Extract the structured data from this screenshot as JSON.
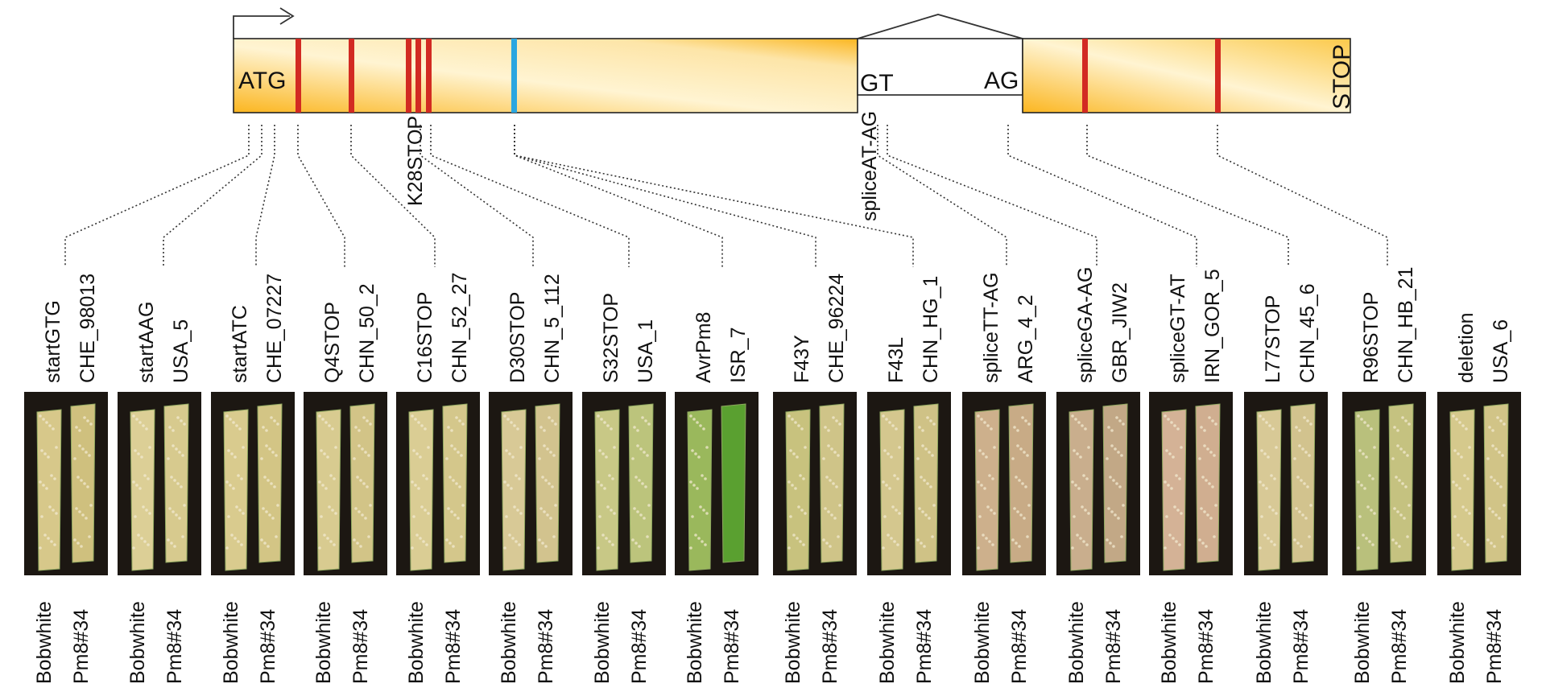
{
  "gene": {
    "start_codon": "ATG",
    "splice_donor": "GT",
    "splice_acceptor": "AG",
    "stop_codon": "STOP",
    "inline_labels": [
      "K28STOP",
      "spliceAT-AG"
    ],
    "colors": {
      "exon_light": "#fff4d2",
      "exon_dark": "#fbb620",
      "mutation": "#d22a22",
      "avr_marker": "#2aa6e0"
    }
  },
  "samples": [
    {
      "mutation": "startGTG",
      "isolate": "CHE_98013",
      "leaf_colors": [
        "#d7c88a",
        "#cfc07e"
      ]
    },
    {
      "mutation": "startAAG",
      "isolate": "USA_5",
      "leaf_colors": [
        "#dccf96",
        "#d7ca8e"
      ]
    },
    {
      "mutation": "startATC",
      "isolate": "CHE_07227",
      "leaf_colors": [
        "#d9cb8e",
        "#d3c585"
      ]
    },
    {
      "mutation": "Q4STOP",
      "isolate": "CHN_50_2",
      "leaf_colors": [
        "#d8cb90",
        "#d2c487"
      ]
    },
    {
      "mutation": "C16STOP",
      "isolate": "CHN_52_27",
      "leaf_colors": [
        "#dacd94",
        "#d4c78b"
      ]
    },
    {
      "mutation": "D30STOP",
      "isolate": "CHN_5_112",
      "leaf_colors": [
        "#d8c996",
        "#d2c38e"
      ]
    },
    {
      "mutation": "S32STOP",
      "isolate": "USA_1",
      "leaf_colors": [
        "#c8c886",
        "#bcc47c"
      ]
    },
    {
      "mutation": "AvrPm8",
      "isolate": "ISR_7",
      "leaf_colors": [
        "#9ab85c",
        "#5aa030"
      ]
    },
    {
      "mutation": "F43Y",
      "isolate": "CHE_96224",
      "leaf_colors": [
        "#c8c27e",
        "#cfc488"
      ]
    },
    {
      "mutation": "F43L",
      "isolate": "CHN_HG_1",
      "leaf_colors": [
        "#d4c78e",
        "#cfc286"
      ]
    },
    {
      "mutation": "spliceTT-AG",
      "isolate": "ARG_4_2",
      "leaf_colors": [
        "#cdb08c",
        "#c8ab86"
      ]
    },
    {
      "mutation": "spliceGA-AG",
      "isolate": "GBR_JIW2",
      "leaf_colors": [
        "#c9ae8d",
        "#c2a886"
      ]
    },
    {
      "mutation": "spliceGT-AT",
      "isolate": "IRN_GOR_5",
      "leaf_colors": [
        "#d4b296",
        "#d0ae90"
      ]
    },
    {
      "mutation": "L77STOP",
      "isolate": "CHN_45_6",
      "leaf_colors": [
        "#d8c996",
        "#d2c38e"
      ]
    },
    {
      "mutation": "R96STOP",
      "isolate": "CHN_HB_21",
      "leaf_colors": [
        "#b9c07c",
        "#c5c280"
      ]
    },
    {
      "mutation": "deletion",
      "isolate": "USA_6",
      "leaf_colors": [
        "#d5c98c",
        "#d1c487"
      ]
    }
  ],
  "leaf_labels": [
    "Bobwhite",
    "Pm8#34"
  ]
}
